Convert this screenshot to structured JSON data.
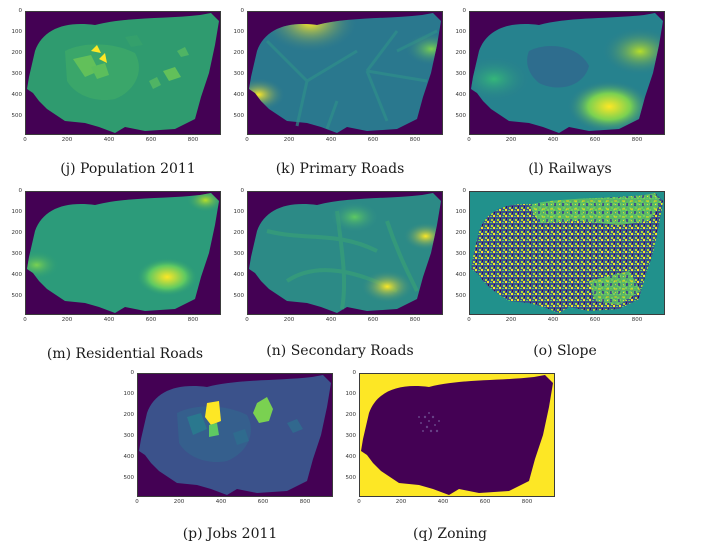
{
  "colors": {
    "background": "#440154",
    "viridis_dark": "#3b528b",
    "viridis_mid": "#21918c",
    "viridis_green": "#5ec962",
    "viridis_yellow": "#fde725"
  },
  "axes": {
    "yticks": [
      "0",
      "100",
      "200",
      "300",
      "400",
      "500"
    ],
    "xticks": [
      "0",
      "200",
      "400",
      "600",
      "800"
    ]
  },
  "panels": [
    {
      "id": "j",
      "caption": "(j) Population 2011"
    },
    {
      "id": "k",
      "caption": "(k) Primary Roads"
    },
    {
      "id": "l",
      "caption": "(l) Railways"
    },
    {
      "id": "m",
      "caption": "(m) Residential Roads"
    },
    {
      "id": "n",
      "caption": "(n) Secondary Roads"
    },
    {
      "id": "o",
      "caption": "(o) Slope"
    },
    {
      "id": "p",
      "caption": "(p) Jobs 2011"
    },
    {
      "id": "q",
      "caption": "(q) Zoning"
    }
  ]
}
